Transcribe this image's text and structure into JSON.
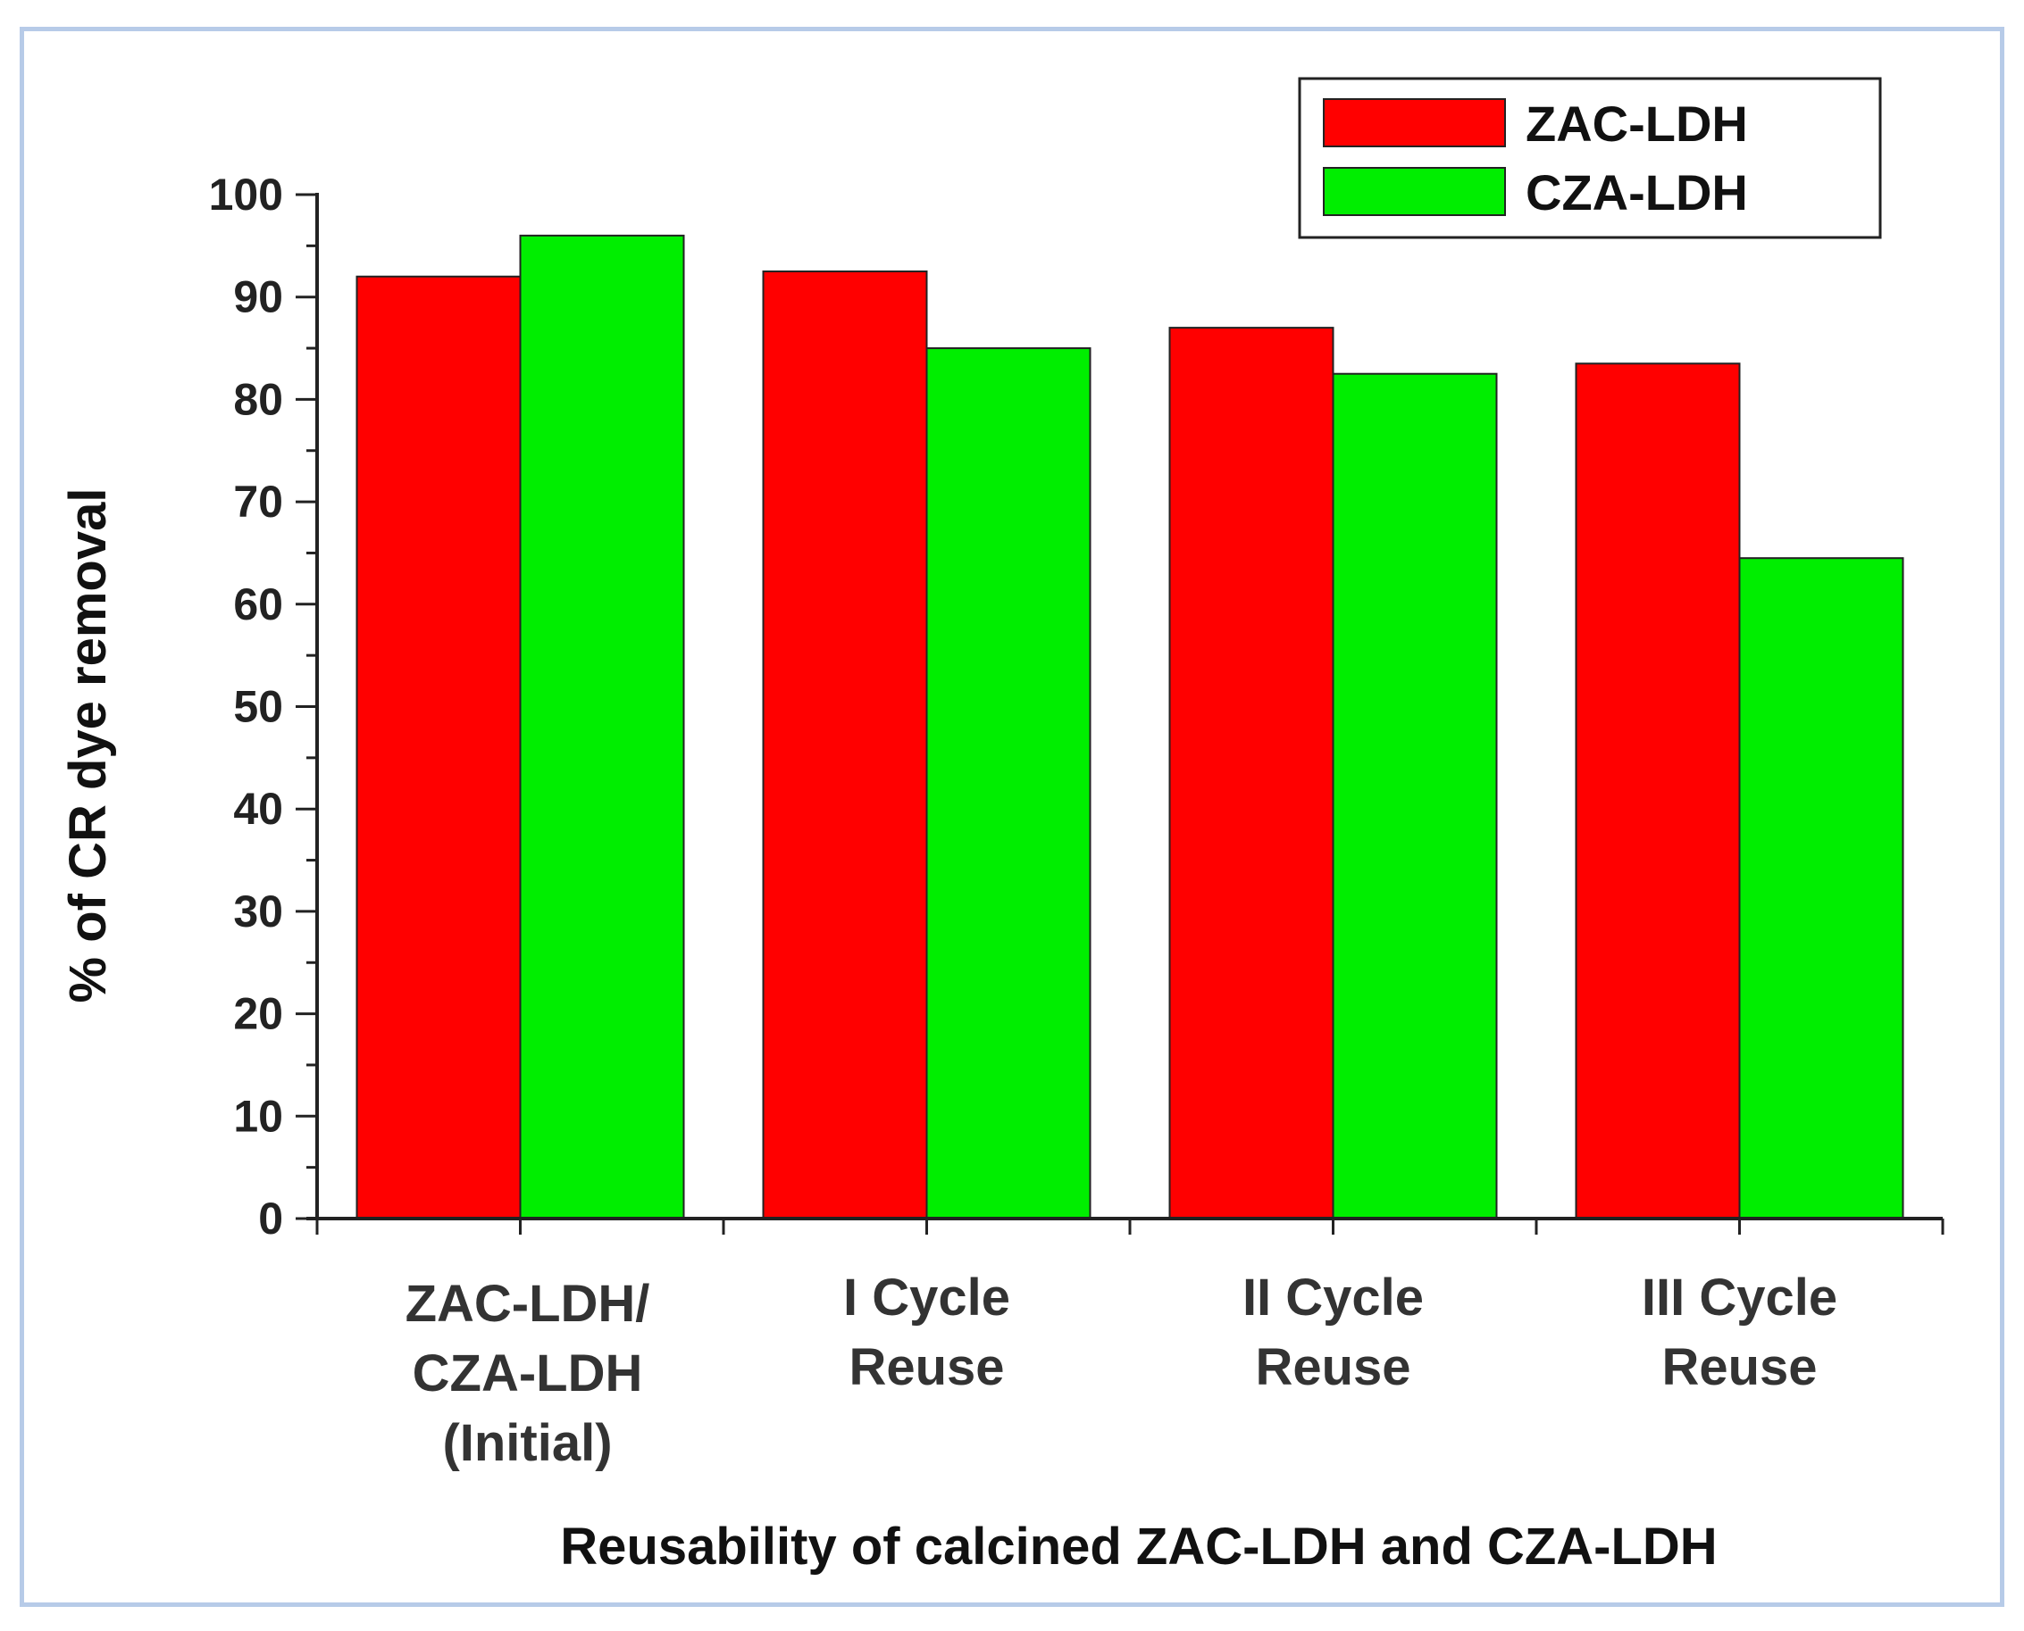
{
  "chart_data": {
    "type": "bar",
    "categories": [
      [
        "ZAC-LDH/",
        "CZA-LDH",
        "(Initial)"
      ],
      [
        "I Cycle",
        "Reuse"
      ],
      [
        "II Cycle",
        "Reuse"
      ],
      [
        "III Cycle",
        "Reuse"
      ]
    ],
    "series": [
      {
        "name": "ZAC-LDH",
        "color": "#ff0000",
        "values": [
          92,
          92.5,
          87,
          83.5
        ]
      },
      {
        "name": "CZA-LDH",
        "color": "#00ee00",
        "values": [
          96,
          85,
          82.5,
          64.5
        ]
      }
    ],
    "title": "",
    "xlabel": "Reusability of calcined ZAC-LDH and CZA-LDH",
    "ylabel": "% of CR dye removal",
    "ylim": [
      0,
      100
    ],
    "yticks": [
      0,
      10,
      20,
      30,
      40,
      50,
      60,
      70,
      80,
      90,
      100
    ],
    "legend_position": "top-right",
    "grid": false
  }
}
